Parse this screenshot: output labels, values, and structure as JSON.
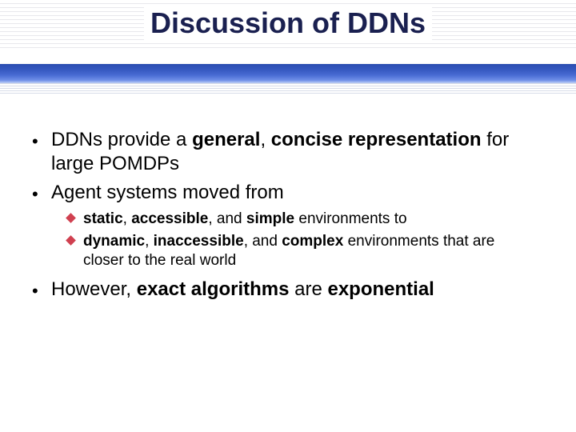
{
  "title": "Discussion of DDNs",
  "colors": {
    "title_color": "#1a2050",
    "diamond_color": "#d04050",
    "blue_bar_top": "#2a4db0",
    "blue_bar_bottom": "#c0d0f5",
    "text_color": "#000000",
    "background": "#ffffff",
    "rule_line": "#e8e8ec"
  },
  "fonts": {
    "title_size": 36,
    "level1_size": 24,
    "level2_size": 19,
    "family": "Arial"
  },
  "bullets": [
    {
      "level": 1,
      "segments": [
        {
          "t": "DDNs provide a ",
          "b": false
        },
        {
          "t": "general",
          "b": true
        },
        {
          "t": ", ",
          "b": false
        },
        {
          "t": "concise representation",
          "b": true
        },
        {
          "t": " for large POMDPs",
          "b": false
        }
      ]
    },
    {
      "level": 1,
      "segments": [
        {
          "t": "Agent systems moved from",
          "b": false
        }
      ]
    },
    {
      "level": 2,
      "segments": [
        {
          "t": "static",
          "b": true
        },
        {
          "t": ", ",
          "b": false
        },
        {
          "t": "accessible",
          "b": true
        },
        {
          "t": ", and ",
          "b": false
        },
        {
          "t": "simple",
          "b": true
        },
        {
          "t": " environments to",
          "b": false
        }
      ]
    },
    {
      "level": 2,
      "segments": [
        {
          "t": "dynamic",
          "b": true
        },
        {
          "t": ", ",
          "b": false
        },
        {
          "t": "inaccessible",
          "b": true
        },
        {
          "t": ", and ",
          "b": false
        },
        {
          "t": "complex",
          "b": true
        },
        {
          "t": " environments that are closer to the real world",
          "b": false
        }
      ]
    },
    {
      "level": 1,
      "segments": [
        {
          "t": "However, ",
          "b": false
        },
        {
          "t": "exact algorithms",
          "b": true
        },
        {
          "t": " are ",
          "b": false
        },
        {
          "t": "exponential",
          "b": true
        }
      ]
    }
  ]
}
